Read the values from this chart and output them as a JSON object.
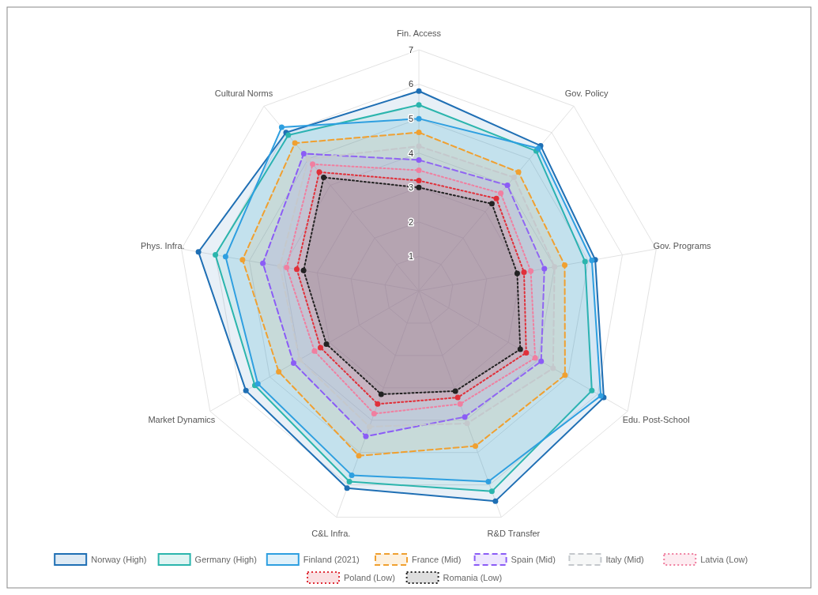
{
  "chart_data": {
    "type": "radar",
    "categories": [
      "Fin. Access",
      "Gov. Policy",
      "Gov. Programs",
      "Edu. Post-School",
      "R&D Transfer",
      "C&L Infra.",
      "Market Dynamics",
      "Phys. Infra.",
      "Cultural Norms"
    ],
    "ylim": [
      0,
      7
    ],
    "yticks": [
      1,
      2,
      3,
      4,
      5,
      6,
      7
    ],
    "grid": true,
    "legend": "bottom",
    "marker": "circle",
    "series": [
      {
        "name": "Norway (High)",
        "color": "#1f6fb4",
        "line_style": "solid",
        "values": [
          5.8,
          5.5,
          5.2,
          6.2,
          6.5,
          6.1,
          5.8,
          6.5,
          6.0
        ]
      },
      {
        "name": "Germany (High)",
        "color": "#2bb5ad",
        "line_style": "solid",
        "values": [
          5.4,
          5.3,
          4.9,
          5.8,
          6.2,
          5.9,
          5.5,
          6.0,
          5.9
        ]
      },
      {
        "name": "Finland (2021)",
        "color": "#2e9fe0",
        "line_style": "solid",
        "values": [
          5.0,
          5.4,
          5.1,
          6.1,
          5.9,
          5.7,
          5.4,
          5.7,
          6.2
        ]
      },
      {
        "name": "France (Mid)",
        "color": "#f0a030",
        "line_style": "dashed",
        "values": [
          4.6,
          4.5,
          4.3,
          4.9,
          4.8,
          5.1,
          4.7,
          5.2,
          5.6
        ]
      },
      {
        "name": "Spain (Mid)",
        "color": "#8b5cf6",
        "line_style": "dashed",
        "values": [
          3.8,
          4.0,
          3.7,
          4.1,
          3.9,
          4.5,
          4.2,
          4.6,
          5.2
        ]
      },
      {
        "name": "Italy (Mid)",
        "color": "#c4c8cc",
        "line_style": "dashed",
        "values": [
          4.2,
          4.3,
          4.0,
          4.5,
          4.1,
          4.2,
          4.0,
          4.1,
          5.0
        ]
      },
      {
        "name": "Latvia (Low)",
        "color": "#f07fa0",
        "line_style": "dotted",
        "values": [
          3.5,
          3.7,
          3.3,
          3.9,
          3.5,
          3.8,
          3.5,
          3.9,
          4.8
        ]
      },
      {
        "name": "Poland (Low)",
        "color": "#e0303a",
        "line_style": "dotted",
        "values": [
          3.2,
          3.5,
          3.1,
          3.6,
          3.3,
          3.5,
          3.3,
          3.6,
          4.5
        ]
      },
      {
        "name": "Romania (Low)",
        "color": "#222222",
        "line_style": "dotted",
        "values": [
          3.0,
          3.3,
          2.9,
          3.4,
          3.1,
          3.2,
          3.1,
          3.4,
          4.3
        ]
      }
    ]
  }
}
